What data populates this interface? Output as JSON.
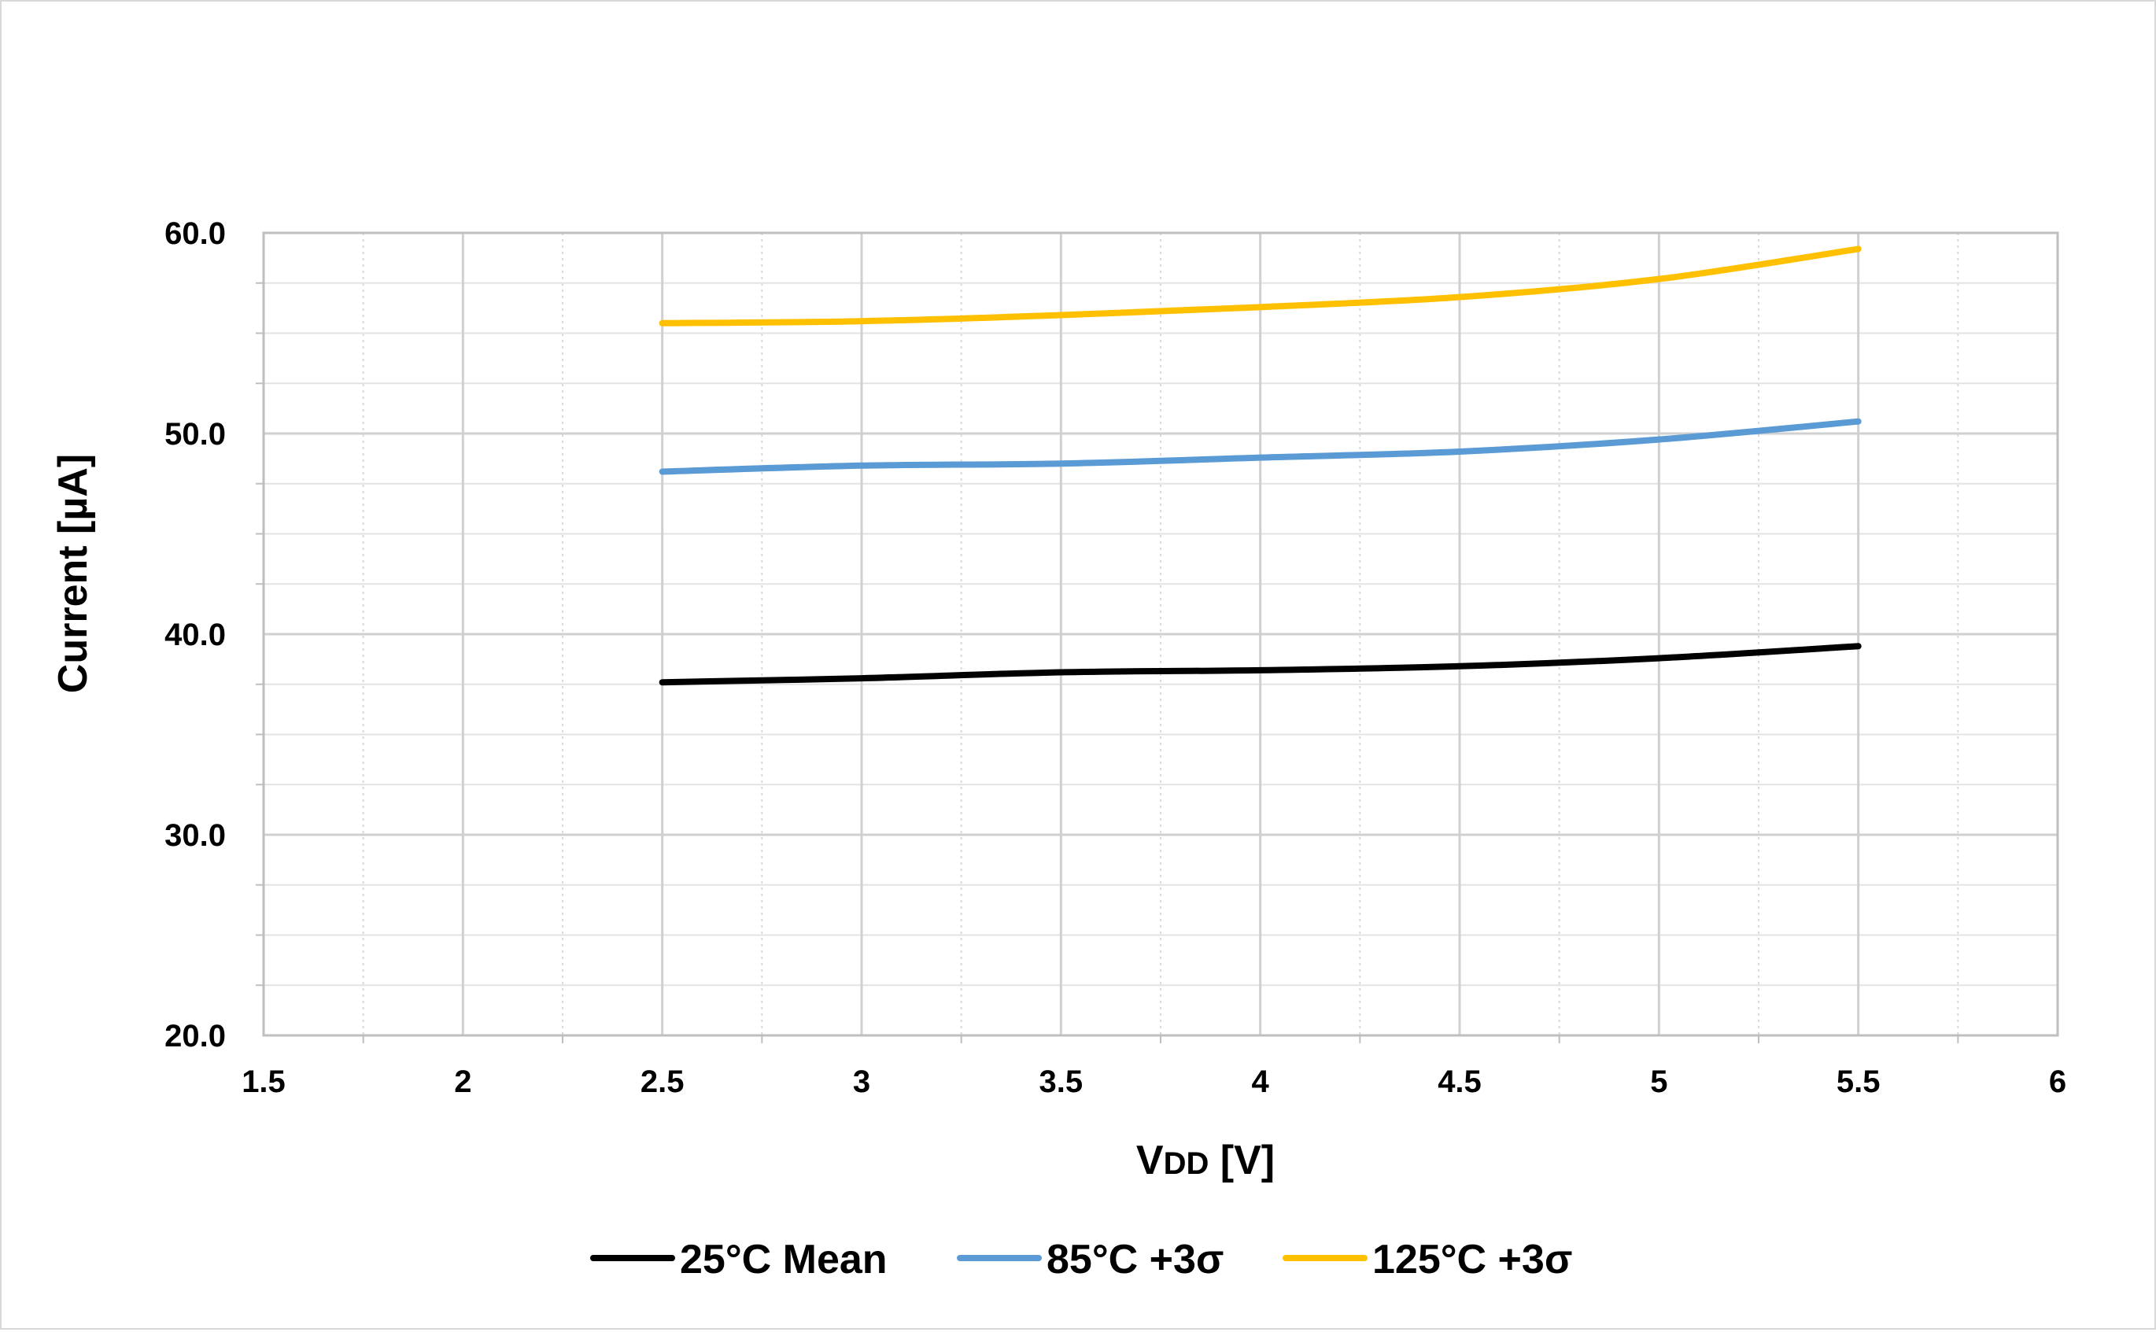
{
  "chart_data": {
    "type": "line",
    "title": "",
    "xlabel": "VDD [V]",
    "xlabel_main": "V",
    "xlabel_sub": "DD",
    "xlabel_unit": " [V]",
    "ylabel": "Current [µA]",
    "xlim": [
      1.5,
      6
    ],
    "ylim": [
      20,
      60
    ],
    "x_ticks": [
      1.5,
      2,
      2.5,
      3,
      3.5,
      4,
      4.5,
      5,
      5.5,
      6
    ],
    "x_tick_labels": [
      "1.5",
      "2",
      "2.5",
      "3",
      "3.5",
      "4",
      "4.5",
      "5",
      "5.5",
      "6"
    ],
    "y_ticks": [
      20,
      30,
      40,
      50,
      60
    ],
    "y_tick_labels": [
      "20.0",
      "30.0",
      "40.0",
      "50.0",
      "60.0"
    ],
    "grid": true,
    "legend_position": "bottom",
    "x": [
      2.5,
      3,
      3.5,
      4,
      4.5,
      5,
      5.5
    ],
    "series": [
      {
        "name": "25°C Mean",
        "color": "#000000",
        "values": [
          37.6,
          37.8,
          38.1,
          38.2,
          38.4,
          38.8,
          39.4
        ]
      },
      {
        "name": "85°C +3σ",
        "color": "#5b9bd5",
        "values": [
          48.1,
          48.4,
          48.5,
          48.8,
          49.1,
          49.7,
          50.6
        ]
      },
      {
        "name": "125°C +3σ",
        "color": "#ffc000",
        "values": [
          55.5,
          55.6,
          55.9,
          56.3,
          56.8,
          57.7,
          59.2
        ]
      }
    ]
  }
}
